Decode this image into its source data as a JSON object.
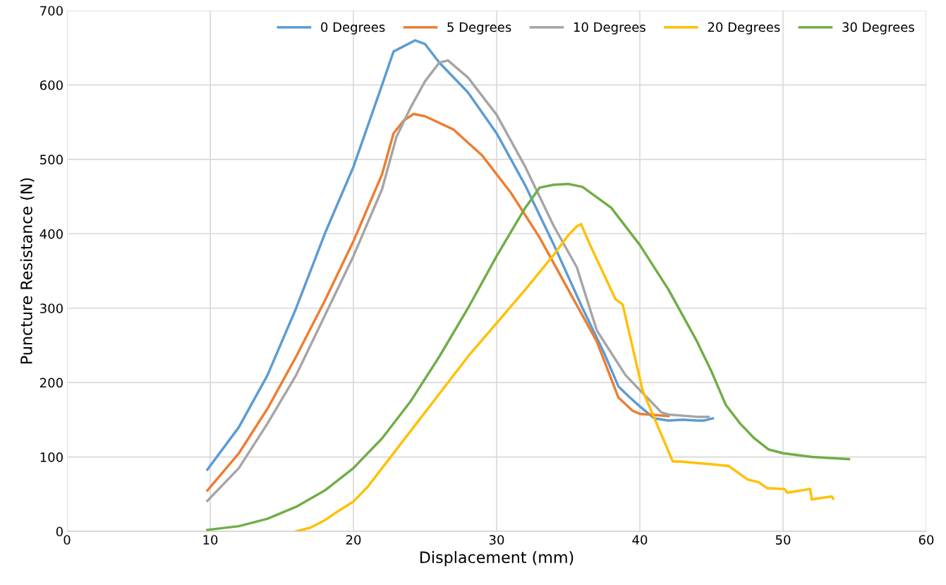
{
  "chart_data": {
    "type": "line",
    "xlabel": "Displacement (mm)",
    "ylabel": "Puncture Resistance (N)",
    "xlim": [
      0,
      60
    ],
    "xticks": [
      0,
      10,
      20,
      30,
      40,
      50,
      60
    ],
    "ylim": [
      0,
      700
    ],
    "yticks": [
      0,
      100,
      200,
      300,
      400,
      500,
      600,
      700
    ],
    "grid": true,
    "legend": "top right",
    "marker": "none",
    "line_style": "solid",
    "series": [
      {
        "name": "0 Degrees",
        "color": "#5b9bd5",
        "x": [
          9.8,
          12,
          14,
          16,
          18,
          20,
          22,
          22.8,
          23.5,
          24.3,
          25,
          26,
          28,
          30,
          32,
          34,
          36,
          37.5,
          38.5,
          39.3,
          40,
          41,
          42,
          43,
          44,
          44.5,
          45.1
        ],
        "values": [
          83,
          140,
          210,
          300,
          400,
          490,
          600,
          645,
          652,
          660,
          655,
          630,
          590,
          535,
          465,
          385,
          300,
          240,
          195,
          180,
          168,
          152,
          149,
          150,
          149,
          149,
          152
        ]
      },
      {
        "name": "5 Degrees",
        "color": "#ed7d31",
        "x": [
          9.8,
          12,
          14,
          16,
          18,
          20,
          22,
          22.8,
          23.5,
          24.2,
          25,
          27,
          29,
          31,
          33,
          35,
          37,
          38.5,
          39.5,
          40,
          42
        ],
        "values": [
          55,
          105,
          165,
          235,
          310,
          390,
          480,
          535,
          552,
          561,
          558,
          540,
          505,
          455,
          395,
          325,
          255,
          180,
          162,
          158,
          155
        ]
      },
      {
        "name": "10 Degrees",
        "color": "#a5a5a5",
        "x": [
          9.8,
          12,
          14,
          16,
          18,
          20,
          22,
          23,
          24,
          25,
          26,
          26.6,
          28,
          30,
          32,
          34,
          35.6,
          36.5,
          37,
          38,
          39,
          40,
          41,
          41.5,
          42,
          44,
          44.8
        ],
        "values": [
          41,
          85,
          145,
          210,
          290,
          370,
          460,
          530,
          570,
          605,
          630,
          633,
          610,
          560,
          490,
          410,
          355,
          300,
          270,
          240,
          210,
          190,
          170,
          160,
          157,
          154,
          154
        ]
      },
      {
        "name": "20 Degrees",
        "color": "#ffc000",
        "x": [
          16,
          17,
          18,
          19,
          20,
          21,
          22,
          24,
          26,
          28,
          30,
          32,
          34,
          35,
          35.6,
          35.9,
          36.5,
          38.3,
          38.8,
          40.2,
          42.3,
          42.8,
          46.2,
          47.5,
          48.3,
          48.9,
          50.1,
          50.3,
          51.9,
          52.0,
          53.4,
          53.5
        ],
        "values": [
          0,
          5,
          15,
          28,
          40,
          60,
          85,
          135,
          185,
          235,
          280,
          325,
          372,
          398,
          410,
          413,
          386,
          312,
          305,
          189,
          94,
          94,
          88,
          70,
          66,
          58,
          57,
          52,
          57,
          43,
          47,
          44
        ]
      },
      {
        "name": "30 Degrees",
        "color": "#70ad47",
        "x": [
          9.8,
          12,
          14,
          16,
          18,
          20,
          22,
          24,
          26,
          28,
          30,
          32,
          33,
          34,
          35,
          36,
          38,
          40,
          42,
          44,
          45,
          46,
          47,
          48,
          49,
          50,
          52,
          54.6
        ],
        "values": [
          2,
          7,
          17,
          33,
          55,
          85,
          125,
          175,
          235,
          300,
          370,
          435,
          462,
          466,
          467,
          463,
          435,
          385,
          325,
          255,
          215,
          170,
          145,
          125,
          110,
          105,
          100,
          97
        ]
      }
    ]
  }
}
